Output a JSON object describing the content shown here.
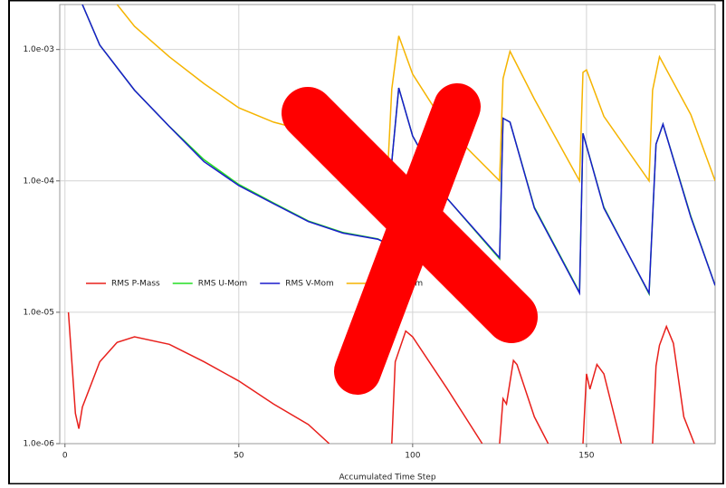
{
  "chart_data": {
    "type": "line",
    "x_label": "Accumulated Time Step",
    "log_y": true,
    "grid": true,
    "xlim": [
      -1.5,
      187
    ],
    "xticks": [
      0,
      50,
      100,
      150
    ],
    "ylim": [
      1e-06,
      0.0022
    ],
    "yticks": [
      {
        "value": 1e-06,
        "label": "1.0e-06"
      },
      {
        "value": 1e-05,
        "label": "1.0e-05"
      },
      {
        "value": 0.0001,
        "label": "1.0e-04"
      },
      {
        "value": 0.001,
        "label": "1.0e-03"
      }
    ],
    "legend": "middle-left",
    "series": [
      {
        "name": "RMS P-Mass",
        "color": "#e8201c",
        "x": [
          1,
          3,
          4,
          5,
          10,
          15,
          20,
          30,
          40,
          50,
          60,
          70,
          76,
          85,
          94,
          95,
          98,
          100,
          110,
          120,
          122,
          125,
          126,
          127,
          129,
          130,
          135,
          139,
          144,
          149,
          150,
          151,
          153,
          155,
          160,
          165,
          169,
          170,
          171,
          173,
          175,
          178,
          181
        ],
        "values": [
          1e-05,
          1.7e-06,
          1.3e-06,
          1.9e-06,
          4.2e-06,
          5.9e-06,
          6.5e-06,
          5.7e-06,
          4.2e-06,
          3e-06,
          2e-06,
          1.4e-06,
          1e-06,
          null,
          1e-06,
          4.2e-06,
          7.2e-06,
          6.5e-06,
          2.6e-06,
          1e-06,
          null,
          1e-06,
          2.2e-06,
          2e-06,
          4.3e-06,
          4e-06,
          1.6e-06,
          1e-06,
          null,
          1e-06,
          3.4e-06,
          2.6e-06,
          4e-06,
          3.4e-06,
          1e-06,
          null,
          1e-06,
          3.9e-06,
          5.6e-06,
          7.8e-06,
          5.8e-06,
          1.6e-06,
          1e-06
        ]
      },
      {
        "name": "RMS U-Mom",
        "color": "#22dd22",
        "x": [
          5,
          10,
          20,
          30,
          40,
          50,
          60,
          70,
          80,
          90,
          93,
          94,
          96,
          100,
          110,
          125,
          126,
          128,
          135,
          148,
          149,
          155,
          168,
          170,
          172,
          180,
          187
        ],
        "values": [
          0.0022,
          0.00108,
          0.00049,
          0.00026,
          0.000145,
          9.4e-05,
          6.8e-05,
          4.95e-05,
          4.05e-05,
          3.62e-05,
          3.3e-05,
          0.00014,
          0.00051,
          0.00022,
          7.3e-05,
          2.55e-05,
          0.0003,
          0.00028,
          6.3e-05,
          1.42e-05,
          0.00023,
          6.3e-05,
          1.38e-05,
          0.00019,
          0.00027,
          5.4e-05,
          1.6e-05
        ]
      },
      {
        "name": "RMS V-Mom",
        "color": "#1a1acc",
        "x": [
          5,
          10,
          20,
          30,
          40,
          50,
          60,
          70,
          80,
          90,
          93,
          94,
          96,
          100,
          110,
          125,
          126,
          128,
          135,
          148,
          149,
          155,
          168,
          170,
          172,
          180,
          187
        ],
        "values": [
          0.0022,
          0.00108,
          0.00049,
          0.00026,
          0.00014,
          9.2e-05,
          6.7e-05,
          4.9e-05,
          4e-05,
          3.6e-05,
          3.3e-05,
          0.00014,
          0.00051,
          0.00022,
          7.3e-05,
          2.6e-05,
          0.0003,
          0.00028,
          6.2e-05,
          1.4e-05,
          0.00023,
          6.2e-05,
          1.4e-05,
          0.00019,
          0.00027,
          5.3e-05,
          1.6e-05
        ]
      },
      {
        "name": "RMS W-Mom",
        "color": "#f5b400",
        "x": [
          15,
          20,
          30,
          40,
          50,
          60,
          75,
          90,
          93,
          94,
          96,
          100,
          110,
          125,
          126,
          128,
          135,
          148,
          149,
          150,
          155,
          168,
          169,
          171,
          180,
          187
        ],
        "values": [
          0.0022,
          0.0015,
          0.00088,
          0.00055,
          0.00036,
          0.00028,
          0.00022,
          0.00016,
          0.00015,
          0.0005,
          0.00127,
          0.00065,
          0.00025,
          0.0001,
          0.0006,
          0.00097,
          0.00042,
          0.0001,
          0.00067,
          0.0007,
          0.00031,
          0.0001,
          0.00049,
          0.00088,
          0.00032,
          0.0001
        ]
      }
    ]
  }
}
